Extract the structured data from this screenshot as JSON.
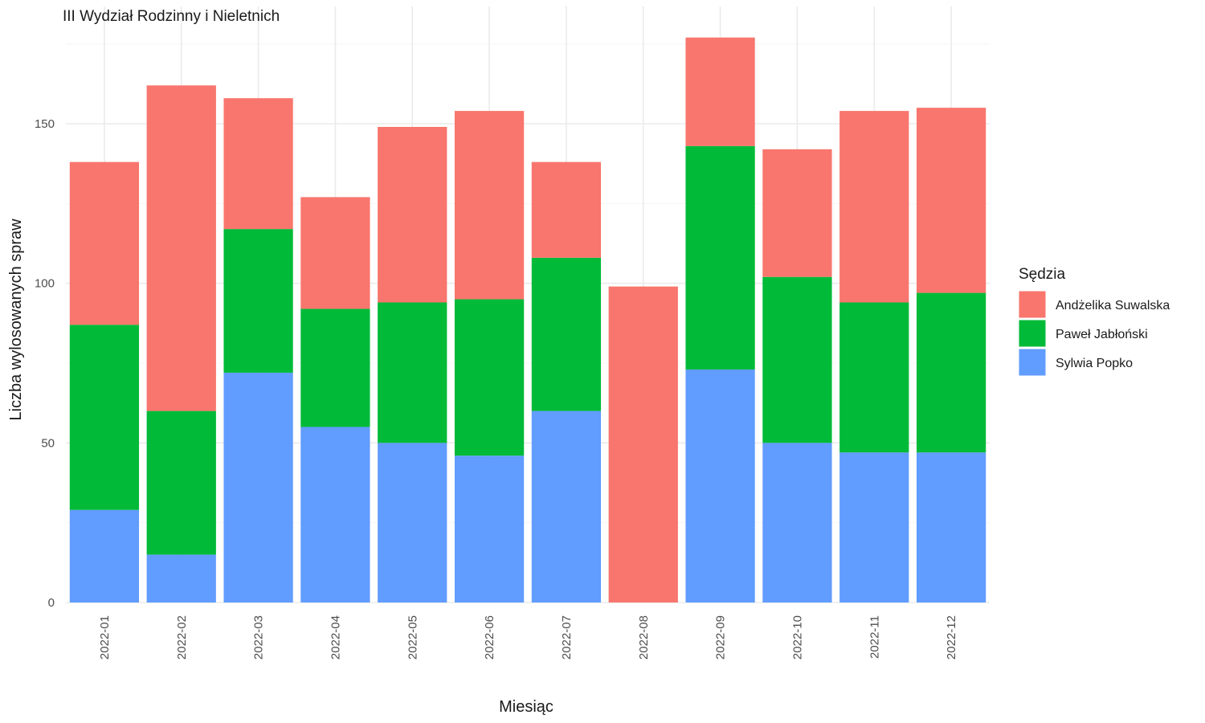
{
  "chart_data": {
    "type": "bar",
    "stacked": true,
    "title": "III Wydział Rodzinny i Nieletnich",
    "xlabel": "Miesiąc",
    "ylabel": "Liczba wylosowanych spraw",
    "ylim": [
      0,
      180
    ],
    "yticks": [
      0,
      50,
      100,
      150
    ],
    "grid": true,
    "categories": [
      "2022-01",
      "2022-02",
      "2022-03",
      "2022-04",
      "2022-05",
      "2022-06",
      "2022-07",
      "2022-08",
      "2022-09",
      "2022-10",
      "2022-11",
      "2022-12"
    ],
    "legend": {
      "title": "Sędzia",
      "placement": "right"
    },
    "series": [
      {
        "name": "Sylwia Popko",
        "color": "#619CFF",
        "values": [
          29,
          15,
          72,
          55,
          50,
          46,
          60,
          0,
          73,
          50,
          47,
          47
        ]
      },
      {
        "name": "Paweł Jabłoński",
        "color": "#00BA38",
        "values": [
          58,
          45,
          45,
          37,
          44,
          49,
          48,
          0,
          70,
          52,
          47,
          50
        ]
      },
      {
        "name": "Andżelika Suwalska",
        "color": "#F8766D",
        "values": [
          51,
          102,
          41,
          35,
          55,
          59,
          30,
          99,
          34,
          40,
          60,
          58
        ]
      }
    ],
    "legend_order": [
      "Andżelika Suwalska",
      "Paweł Jabłoński",
      "Sylwia Popko"
    ]
  }
}
